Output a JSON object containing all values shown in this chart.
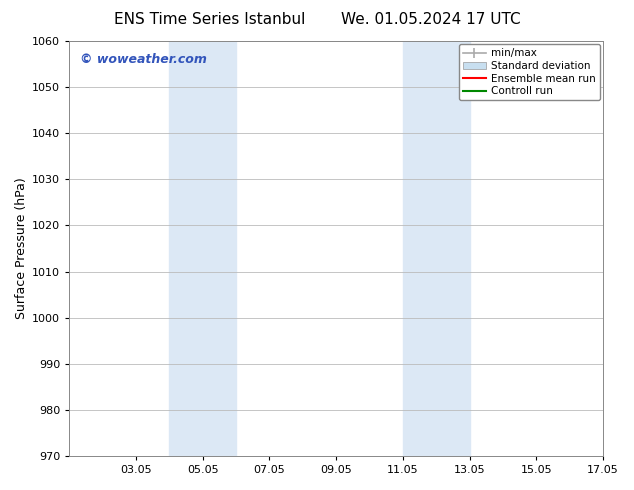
{
  "title_left": "ENS Time Series Istanbul",
  "title_right": "We. 01.05.2024 17 UTC",
  "ylabel": "Surface Pressure (hPa)",
  "ylim": [
    970,
    1060
  ],
  "yticks": [
    970,
    980,
    990,
    1000,
    1010,
    1020,
    1030,
    1040,
    1050,
    1060
  ],
  "xlim": [
    1.0,
    17.0
  ],
  "xtick_labels": [
    "03.05",
    "05.05",
    "07.05",
    "09.05",
    "11.05",
    "13.05",
    "15.05",
    "17.05"
  ],
  "xtick_positions": [
    3,
    5,
    7,
    9,
    11,
    13,
    15,
    17
  ],
  "shaded_regions": [
    {
      "xmin": 4.0,
      "xmax": 6.0,
      "color": "#dce8f5"
    },
    {
      "xmin": 11.0,
      "xmax": 13.0,
      "color": "#dce8f5"
    }
  ],
  "watermark_text": "© woweather.com",
  "watermark_color": "#3355bb",
  "background_color": "#ffffff",
  "grid_color": "#bbbbbb",
  "legend_items": [
    {
      "label": "min/max",
      "color": "#aaaaaa",
      "lw": 1.2
    },
    {
      "label": "Standard deviation",
      "color": "#c8dff0",
      "lw": 7
    },
    {
      "label": "Ensemble mean run",
      "color": "#ff0000",
      "lw": 1.5
    },
    {
      "label": "Controll run",
      "color": "#008800",
      "lw": 1.5
    }
  ],
  "font_size_title": 11,
  "font_size_ticks": 8,
  "font_size_ylabel": 9,
  "font_size_legend": 7.5,
  "font_size_watermark": 9
}
